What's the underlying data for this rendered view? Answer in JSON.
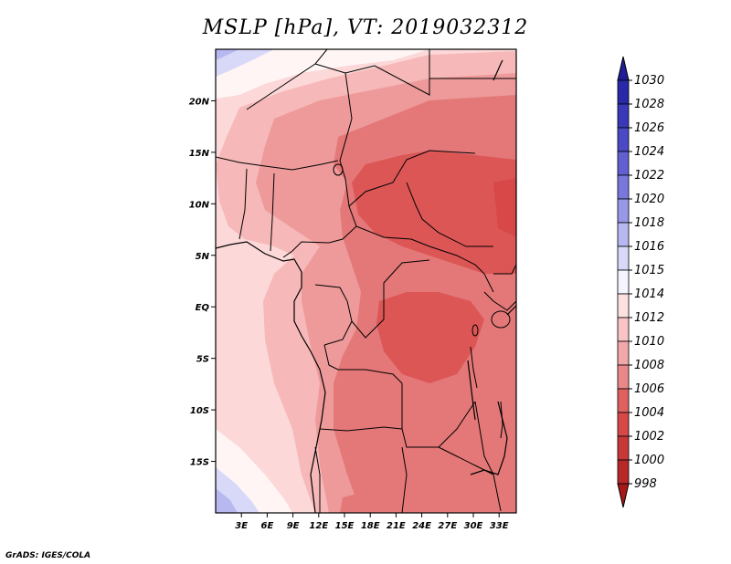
{
  "title": "MSLP [hPa], VT: 2019032312",
  "credit": "GrADS: IGES/COLA",
  "map": {
    "variable": "MSLP",
    "units": "hPa",
    "valid_time": "2019032312",
    "lon_labels": [
      "3E",
      "6E",
      "9E",
      "12E",
      "15E",
      "18E",
      "21E",
      "24E",
      "27E",
      "30E",
      "33E"
    ],
    "lon_values": [
      3,
      6,
      9,
      12,
      15,
      18,
      21,
      24,
      27,
      30,
      33
    ],
    "lon_range": [
      0,
      35
    ],
    "lat_labels": [
      "20N",
      "15N",
      "10N",
      "5N",
      "EQ",
      "5S",
      "10S",
      "15S"
    ],
    "lat_values": [
      20,
      15,
      10,
      5,
      0,
      -5,
      -10,
      -15
    ],
    "lat_range": [
      -20,
      25
    ]
  },
  "colorbar": {
    "levels": [
      "1030",
      "1028",
      "1026",
      "1024",
      "1022",
      "1020",
      "1018",
      "1016",
      "1015",
      "1014",
      "1012",
      "1010",
      "1008",
      "1006",
      "1004",
      "1002",
      "1000",
      "998"
    ],
    "colors": [
      "#1e1e96",
      "#2828a8",
      "#3838b8",
      "#4a4ac4",
      "#6060d0",
      "#7878dc",
      "#9898e8",
      "#b8b8f0",
      "#d8d8f8",
      "#f4f4ff",
      "#fde0e0",
      "#f8c4c4",
      "#f2a8a8",
      "#e88888",
      "#e06060",
      "#d84848",
      "#c83838",
      "#b82828",
      "#a81818"
    ]
  },
  "legend_colors": {
    "p1014": "#fff5f5",
    "p1012": "#fcd8d8",
    "p1010": "#f6b8b8",
    "p1008": "#ee9a9a",
    "p1006": "#e47878",
    "p1004": "#dc5656",
    "high1": "#d8d8f8",
    "high2": "#b8b8f0"
  }
}
